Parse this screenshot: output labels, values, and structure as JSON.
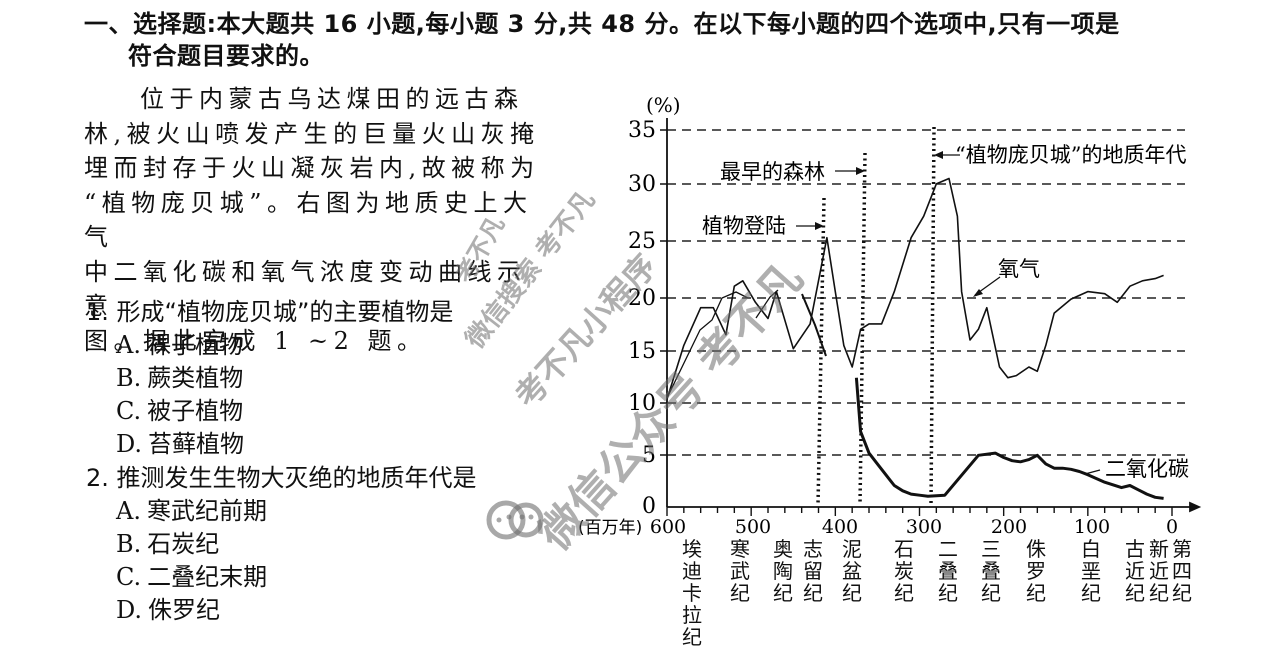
{
  "section_heading": {
    "line1": "一、选择题:本大题共 16 小题,每小题 3 分,共 48 分。在以下每小题的四个选项中,只有一项是",
    "line2": "符合题目要求的。"
  },
  "passage": {
    "lines": [
      "位于内蒙古乌达煤田的远古森",
      "林,被火山喷发产生的巨量火山灰掩",
      "埋而封存于火山凝灰岩内,故被称为",
      "“植物庞贝城”。右图为地质史上大气",
      "中二氧化碳和氧气浓度变动曲线示意",
      "图。据此完成 1 ~2 题。"
    ]
  },
  "questions": [
    {
      "stem": "1. 形成“植物庞贝城”的主要植物是",
      "options": [
        {
          "key": "A.",
          "text": "裸子植物"
        },
        {
          "key": "B.",
          "text": "蕨类植物"
        },
        {
          "key": "C.",
          "text": "被子植物"
        },
        {
          "key": "D.",
          "text": "苔藓植物"
        }
      ]
    },
    {
      "stem": "2. 推测发生生物大灭绝的地质年代是",
      "options": [
        {
          "key": "A.",
          "text": "寒武纪前期"
        },
        {
          "key": "B.",
          "text": "石炭纪"
        },
        {
          "key": "C.",
          "text": "二叠纪末期"
        },
        {
          "key": "D.",
          "text": "侏罗纪"
        }
      ]
    }
  ],
  "chart_data": {
    "type": "line",
    "title": "地质史上大气中二氧化碳和氧气浓度变动曲线示意图",
    "ylabel": "(%)",
    "xlabel": "(百万年)",
    "ylim": [
      0,
      35
    ],
    "xlim": [
      600,
      0
    ],
    "y_ticks": [
      0,
      5,
      10,
      15,
      20,
      25,
      30,
      35
    ],
    "x_ticks": [
      600,
      500,
      400,
      300,
      200,
      100,
      0
    ],
    "grid": "horizontal dashed",
    "periods": [
      {
        "name": "埃迪卡拉纪",
        "x": 580
      },
      {
        "name": "寒武纪",
        "x": 515
      },
      {
        "name": "奥陶纪",
        "x": 465
      },
      {
        "name": "志留纪",
        "x": 430
      },
      {
        "name": "泥盆纪",
        "x": 390
      },
      {
        "name": "石炭纪",
        "x": 325
      },
      {
        "name": "二叠纪",
        "x": 270
      },
      {
        "name": "三叠纪",
        "x": 225
      },
      {
        "name": "侏罗纪",
        "x": 170
      },
      {
        "name": "白垩纪",
        "x": 100
      },
      {
        "name": "古近纪",
        "x": 45
      },
      {
        "name": "新近纪",
        "x": 15
      },
      {
        "name": "第四纪",
        "x": 0
      }
    ],
    "annotations": [
      {
        "text": "植物登陆",
        "x": 430
      },
      {
        "text": "最早的森林",
        "x": 375
      },
      {
        "text": "“植物庞贝城”的地质年代",
        "x": 290
      }
    ],
    "series": [
      {
        "name": "氧气",
        "x": [
          600,
          580,
          560,
          545,
          530,
          520,
          510,
          495,
          480,
          470,
          450,
          430,
          420,
          410,
          400,
          390,
          380,
          370,
          360,
          345,
          330,
          310,
          295,
          280,
          265,
          255,
          250,
          240,
          230,
          220,
          205,
          195,
          185,
          170,
          160,
          150,
          140,
          120,
          100,
          80,
          65,
          50,
          35,
          20,
          10
        ],
        "y": [
          10,
          15,
          18.5,
          18.5,
          16,
          20.5,
          21,
          19,
          17.5,
          20,
          14.7,
          17,
          21,
          25,
          20,
          15,
          13,
          16.5,
          17,
          17,
          20,
          25,
          27,
          30,
          30.5,
          27,
          20,
          15.5,
          16.5,
          18.5,
          13,
          12,
          12.2,
          13,
          12.6,
          15,
          18,
          19.3,
          20,
          19.8,
          19,
          20.5,
          21,
          21.2,
          21.5
        ]
      },
      {
        "name": "二氧化碳",
        "x": [
          375,
          370,
          360,
          350,
          340,
          330,
          320,
          310,
          300,
          290,
          270,
          230,
          220,
          210,
          200,
          190,
          180,
          170,
          160,
          150,
          140,
          130,
          120,
          110,
          100,
          80,
          60,
          50,
          40,
          30,
          20,
          10
        ],
        "y": [
          12,
          7,
          5,
          4,
          3,
          2,
          1.5,
          1.2,
          1.1,
          1,
          1.1,
          4.8,
          4.9,
          5,
          4.6,
          4.3,
          4.2,
          4.4,
          4.8,
          4,
          3.6,
          3.6,
          3.5,
          3.3,
          3,
          2.3,
          1.8,
          2,
          1.6,
          1.2,
          0.9,
          0.8
        ]
      }
    ],
    "series_labels": {
      "oxygen": "氧气",
      "co2": "二氧化碳"
    }
  },
  "axis": {
    "y_unit": "(%)",
    "x_unit": "(百万年)",
    "y_ticks": [
      "0",
      "5",
      "10",
      "15",
      "20",
      "25",
      "30",
      "35"
    ],
    "x_ticks": [
      "600",
      "500",
      "400",
      "300",
      "200",
      "100",
      "0"
    ]
  },
  "watermarks": [
    "考不凡",
    "微信搜索 考不凡",
    "考不凡小程序",
    "微信公众号 考不凡"
  ]
}
